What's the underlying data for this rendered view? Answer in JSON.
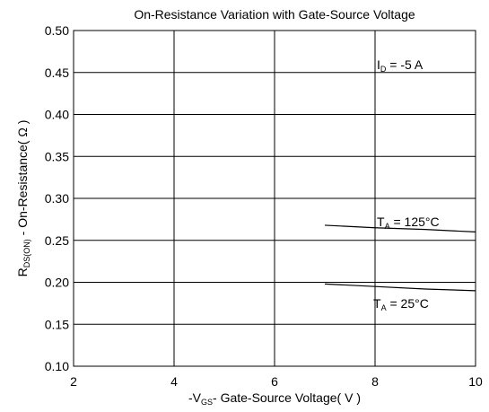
{
  "chart_data": {
    "type": "line",
    "title": "On-Resistance Variation with Gate-Source Voltage",
    "x_label": {
      "main": "-V",
      "sub": "GS",
      "rest": "- Gate-Source Voltage( V )"
    },
    "y_label": {
      "main": "R",
      "sub": "DS(ON)",
      "rest": " - On-Resistance( Ω )"
    },
    "xlim": [
      2,
      10
    ],
    "xticks": [
      2,
      4,
      6,
      8,
      10
    ],
    "ylim": [
      0.1,
      0.5
    ],
    "yticks": [
      {
        "value": 0.1,
        "label": "0.10"
      },
      {
        "value": 0.15,
        "label": "0.15"
      },
      {
        "value": 0.2,
        "label": "0.20"
      },
      {
        "value": 0.25,
        "label": "0.25"
      },
      {
        "value": 0.3,
        "label": "0.30"
      },
      {
        "value": 0.35,
        "label": "0.35"
      },
      {
        "value": 0.4,
        "label": "0.40"
      },
      {
        "value": 0.45,
        "label": "0.45"
      },
      {
        "value": 0.5,
        "label": "0.50"
      }
    ],
    "grid": true,
    "series": [
      {
        "color": "#000000",
        "x": [
          7,
          8,
          9,
          10
        ],
        "values": [
          0.268,
          0.265,
          0.263,
          0.26
        ]
      },
      {
        "color": "#000000",
        "x": [
          7,
          8,
          9,
          10
        ],
        "values": [
          0.198,
          0.195,
          0.192,
          0.19
        ]
      }
    ],
    "annotations": [
      {
        "main": "I",
        "sub": "D",
        "rest": " = -5 A"
      },
      {
        "main": "T",
        "sub": "A",
        "rest": " = 125°C"
      },
      {
        "main": "T",
        "sub": "A",
        "rest": " = 25°C"
      }
    ]
  }
}
